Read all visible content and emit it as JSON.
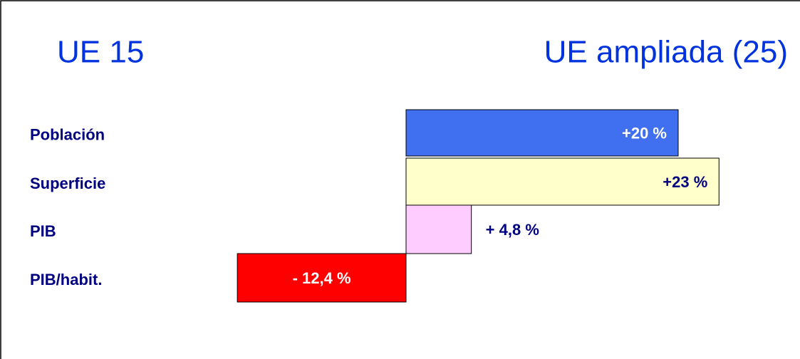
{
  "chart_data": {
    "type": "bar",
    "orientation": "horizontal",
    "title": "UE 15",
    "subtitle": "UE ampliada (25)",
    "categories": [
      "Población",
      "Superficie",
      "PIB",
      "PIB/habit."
    ],
    "values": [
      20,
      23,
      4.8,
      -12.4
    ],
    "value_labels": [
      "+20 %",
      "+23 %",
      "+ 4,8 %",
      "- 12,4 %"
    ],
    "colors": [
      "#4070f0",
      "#ffffcc",
      "#ffccff",
      "#ff0000"
    ],
    "xlim": [
      -15,
      25
    ]
  }
}
